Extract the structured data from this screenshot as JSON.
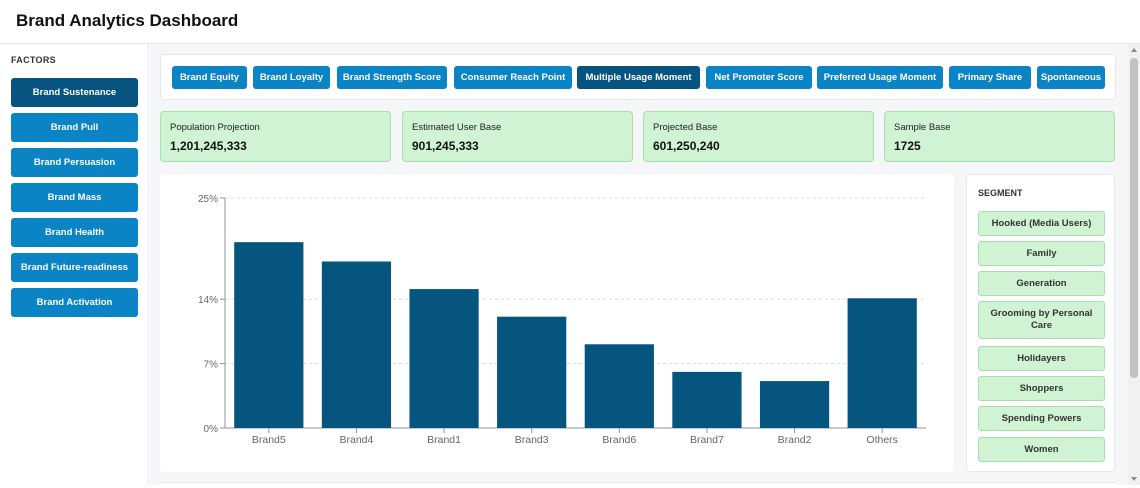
{
  "app": {
    "title": "Brand Analytics Dashboard"
  },
  "sidebar": {
    "heading": "FACTORS",
    "items": [
      {
        "label": "Brand Sustenance",
        "active": true
      },
      {
        "label": "Brand Pull",
        "active": false
      },
      {
        "label": "Brand Persuasion",
        "active": false
      },
      {
        "label": "Brand Mass",
        "active": false
      },
      {
        "label": "Brand Health",
        "active": false
      },
      {
        "label": "Brand Future-readiness",
        "active": false
      },
      {
        "label": "Brand Activation",
        "active": false
      }
    ]
  },
  "tabs": [
    {
      "label": "Brand Equity",
      "active": false
    },
    {
      "label": "Brand Loyalty",
      "active": false
    },
    {
      "label": "Brand Strength Score",
      "active": false
    },
    {
      "label": "Consumer Reach Point",
      "active": false
    },
    {
      "label": "Multiple Usage Moment",
      "active": true
    },
    {
      "label": "Net Promoter Score",
      "active": false
    },
    {
      "label": "Preferred Usage Moment",
      "active": false
    },
    {
      "label": "Primary Share",
      "active": false
    },
    {
      "label": "Spontaneous",
      "active": false
    }
  ],
  "stats": [
    {
      "label": "Population Projection",
      "value": "1,201,245,333"
    },
    {
      "label": "Estimated User Base",
      "value": "901,245,333"
    },
    {
      "label": "Projected Base",
      "value": "601,250,240"
    },
    {
      "label": "Sample Base",
      "value": "1725"
    }
  ],
  "segment": {
    "heading": "SEGMENT",
    "items": [
      {
        "label": "Hooked (Media Users)"
      },
      {
        "label": "Family"
      },
      {
        "label": "Generation"
      },
      {
        "label": "Grooming by Personal Care"
      },
      {
        "label": "Holidayers"
      },
      {
        "label": "Shoppers"
      },
      {
        "label": "Spending Powers"
      },
      {
        "label": "Women"
      }
    ]
  },
  "chart_data": {
    "type": "bar",
    "categories": [
      "Brand5",
      "Brand4",
      "Brand1",
      "Brand3",
      "Brand6",
      "Brand7",
      "Brand2",
      "Others"
    ],
    "values": [
      20.2,
      18.1,
      15.1,
      12.1,
      9.1,
      6.1,
      5.1,
      14.1
    ],
    "yticks": [
      "0%",
      "7%",
      "14%",
      "25%"
    ],
    "ytick_values": [
      0,
      7,
      14,
      25
    ],
    "ylim": [
      0,
      25
    ],
    "grid": true,
    "bar_color": "#05557f"
  },
  "colors": {
    "primary": "#0b84c6",
    "primary_active": "#06547f",
    "stat_bg": "#d0f3d4",
    "bar": "#05557f"
  }
}
